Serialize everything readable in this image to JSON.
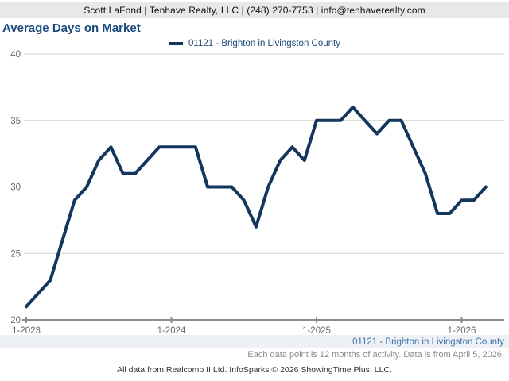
{
  "header": {
    "contact_line": "Scott LaFond | Tenhave Realty, LLC | (248) 270-7753 | info@tenhaverealty.com"
  },
  "title": "Average Days on Market",
  "legend": {
    "label": "01121 - Brighton in Livingston County"
  },
  "chart_data": {
    "type": "line",
    "title": "Average Days on Market",
    "xlabel": "",
    "ylabel": "",
    "ylim": [
      20,
      40
    ],
    "y_ticks": [
      20,
      25,
      30,
      35,
      40
    ],
    "grid": true,
    "legend_position": "top-center",
    "x_tick_labels": [
      "1-2023",
      "1-2024",
      "1-2025",
      "1-2026"
    ],
    "x_tick_indices": [
      0,
      12,
      24,
      36
    ],
    "months": [
      "1-2023",
      "2-2023",
      "3-2023",
      "4-2023",
      "5-2023",
      "6-2023",
      "7-2023",
      "8-2023",
      "9-2023",
      "10-2023",
      "11-2023",
      "12-2023",
      "1-2024",
      "2-2024",
      "3-2024",
      "4-2024",
      "5-2024",
      "6-2024",
      "7-2024",
      "8-2024",
      "9-2024",
      "10-2024",
      "11-2024",
      "12-2024",
      "1-2025",
      "2-2025",
      "3-2025",
      "4-2025",
      "5-2025",
      "6-2025",
      "7-2025",
      "8-2025",
      "9-2025",
      "10-2025",
      "11-2025",
      "12-2025",
      "1-2026",
      "2-2026",
      "3-2026"
    ],
    "series": [
      {
        "name": "01121 - Brighton in Livingston County",
        "color": "#14365c",
        "values": [
          21,
          22,
          23,
          26,
          29,
          30,
          32,
          33,
          31,
          31,
          32,
          33,
          33,
          33,
          33,
          30,
          30,
          30,
          29,
          27,
          30,
          32,
          33,
          32,
          35,
          35,
          35,
          36,
          35,
          34,
          35,
          35,
          33,
          31,
          28,
          28,
          29,
          29,
          30
        ]
      }
    ]
  },
  "footer": {
    "series_caption": "01121 - Brighton in Livingston County",
    "data_note": "Each data point is 12 months of activity. Data is from April 5, 2026.",
    "attribution": "All data from Realcomp II Ltd. InfoSparks © 2026 ShowingTime Plus, LLC."
  },
  "colors": {
    "line": "#14365c",
    "title_text": "#1c4a7d",
    "legend_text": "#1d4a7a",
    "caption_text": "#3e73a8",
    "gridline": "#d0d0d0",
    "axis": "#8c8c8c",
    "tick_label": "#666666",
    "header_bg": "#e8e8e8"
  }
}
